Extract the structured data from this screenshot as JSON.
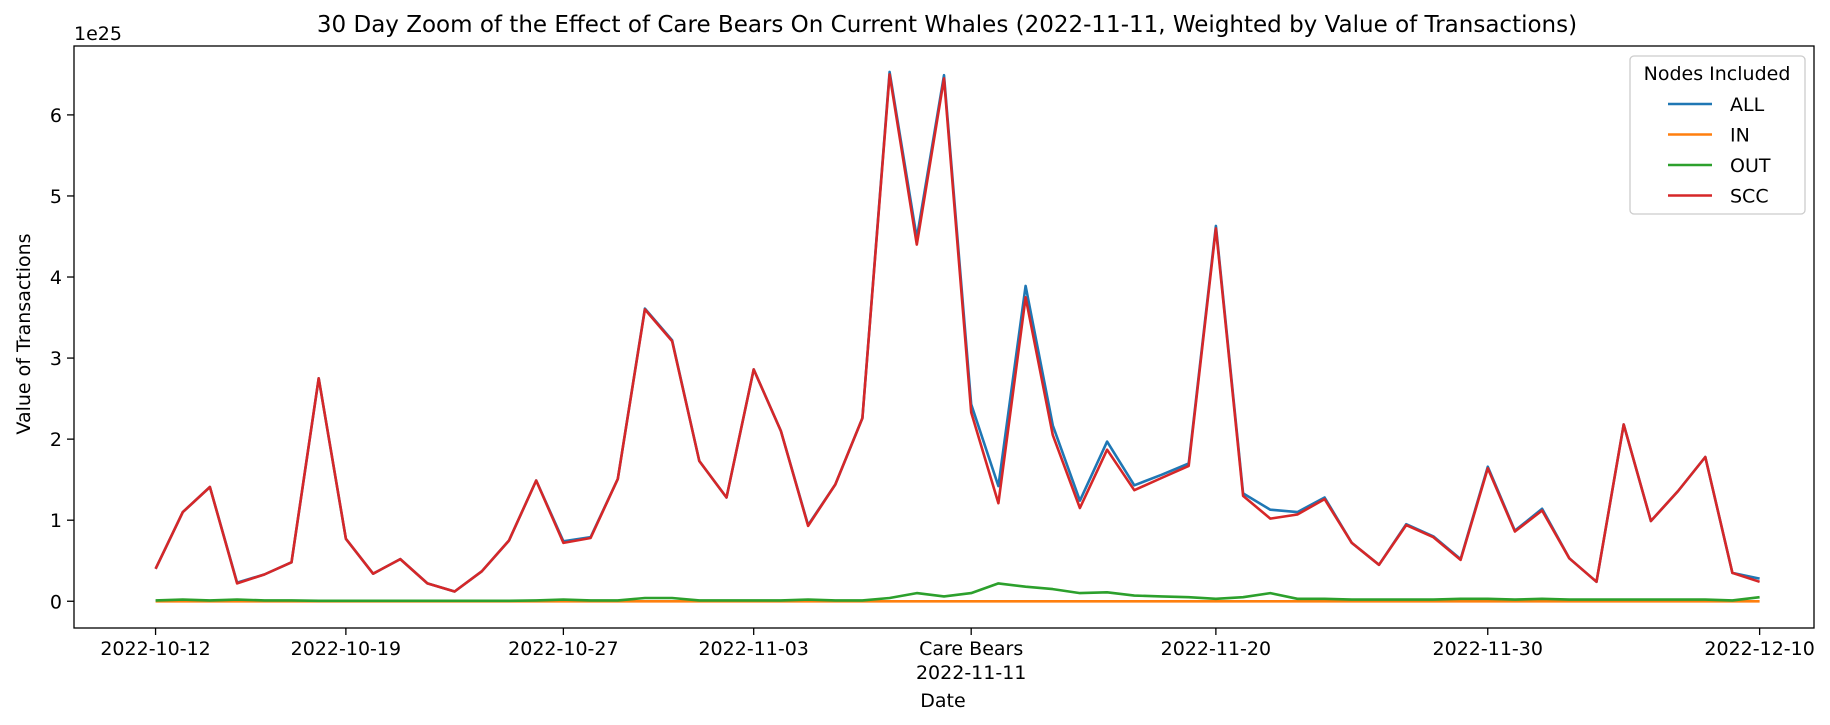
{
  "chart_data": {
    "type": "line",
    "title": "30 Day Zoom of the Effect of Care Bears On Current Whales (2022-11-11, Weighted by Value of Transactions)",
    "xlabel": "Date",
    "ylabel": "Value of Transactions",
    "y_multiplier": "1e25",
    "ylim": [
      -0.33,
      6.85
    ],
    "xlim": [
      "2022-10-09",
      "2022-12-12"
    ],
    "y_ticks": [
      0,
      1,
      2,
      3,
      4,
      5,
      6
    ],
    "x_ticks": [
      {
        "date": "2022-10-12",
        "label": "2022-10-12"
      },
      {
        "date": "2022-10-19",
        "label": "2022-10-19"
      },
      {
        "date": "2022-10-27",
        "label": "2022-10-27"
      },
      {
        "date": "2022-11-03",
        "label": "2022-11-03"
      },
      {
        "date": "2022-11-11",
        "label": "Care Bears\n2022-11-11"
      },
      {
        "date": "2022-11-20",
        "label": "2022-11-20"
      },
      {
        "date": "2022-11-30",
        "label": "2022-11-30"
      },
      {
        "date": "2022-12-10",
        "label": "2022-12-10"
      }
    ],
    "legend_title": "Nodes Included",
    "legend_position": "top-right",
    "grid": false,
    "x": [
      "2022-10-12",
      "2022-10-13",
      "2022-10-14",
      "2022-10-15",
      "2022-10-16",
      "2022-10-17",
      "2022-10-18",
      "2022-10-19",
      "2022-10-20",
      "2022-10-21",
      "2022-10-22",
      "2022-10-23",
      "2022-10-24",
      "2022-10-25",
      "2022-10-26",
      "2022-10-27",
      "2022-10-28",
      "2022-10-29",
      "2022-10-30",
      "2022-10-31",
      "2022-11-01",
      "2022-11-02",
      "2022-11-03",
      "2022-11-04",
      "2022-11-05",
      "2022-11-06",
      "2022-11-07",
      "2022-11-08",
      "2022-11-09",
      "2022-11-10",
      "2022-11-11",
      "2022-11-12",
      "2022-11-13",
      "2022-11-14",
      "2022-11-15",
      "2022-11-16",
      "2022-11-17",
      "2022-11-18",
      "2022-11-19",
      "2022-11-20",
      "2022-11-21",
      "2022-11-22",
      "2022-11-23",
      "2022-11-24",
      "2022-11-25",
      "2022-11-26",
      "2022-11-27",
      "2022-11-28",
      "2022-11-29",
      "2022-11-30",
      "2022-12-01",
      "2022-12-02",
      "2022-12-03",
      "2022-12-04",
      "2022-12-05",
      "2022-12-06",
      "2022-12-07",
      "2022-12-08",
      "2022-12-09",
      "2022-12-10"
    ],
    "series": [
      {
        "name": "ALL",
        "color": "#1f77b4",
        "values": [
          0.4,
          1.1,
          1.41,
          0.23,
          0.33,
          0.48,
          2.75,
          0.77,
          0.34,
          0.52,
          0.22,
          0.12,
          0.37,
          0.75,
          1.49,
          0.74,
          0.79,
          1.51,
          3.61,
          3.22,
          1.73,
          1.28,
          2.86,
          2.1,
          0.94,
          1.44,
          2.26,
          6.53,
          4.48,
          6.49,
          2.43,
          1.42,
          3.89,
          2.17,
          1.24,
          1.97,
          1.43,
          1.56,
          1.7,
          4.63,
          1.33,
          1.13,
          1.1,
          1.28,
          0.72,
          0.45,
          0.95,
          0.8,
          0.52,
          1.66,
          0.87,
          1.14,
          0.53,
          0.24,
          2.18,
          0.99,
          1.36,
          1.78,
          0.35,
          0.28
        ]
      },
      {
        "name": "IN",
        "color": "#ff7f0e",
        "values": [
          0,
          0,
          0,
          0,
          0,
          0,
          0,
          0,
          0,
          0,
          0,
          0,
          0,
          0,
          0,
          0,
          0,
          0,
          0,
          0,
          0,
          0,
          0,
          0,
          0,
          0,
          0,
          0,
          0,
          0,
          0,
          0,
          0,
          0,
          0,
          0,
          0,
          0,
          0,
          0,
          0,
          0,
          0,
          0,
          0,
          0,
          0,
          0,
          0,
          0,
          0,
          0,
          0,
          0,
          0,
          0,
          0,
          0,
          0,
          0
        ]
      },
      {
        "name": "OUT",
        "color": "#2ca02c",
        "values": [
          0.01,
          0.02,
          0.01,
          0.02,
          0.01,
          0.01,
          0.005,
          0.005,
          0.005,
          0.005,
          0.005,
          0.005,
          0.005,
          0.005,
          0.01,
          0.02,
          0.01,
          0.01,
          0.04,
          0.04,
          0.01,
          0.01,
          0.01,
          0.01,
          0.02,
          0.01,
          0.01,
          0.04,
          0.1,
          0.06,
          0.1,
          0.22,
          0.18,
          0.15,
          0.1,
          0.11,
          0.07,
          0.06,
          0.05,
          0.03,
          0.05,
          0.1,
          0.03,
          0.03,
          0.02,
          0.02,
          0.02,
          0.02,
          0.03,
          0.03,
          0.02,
          0.03,
          0.02,
          0.02,
          0.02,
          0.02,
          0.02,
          0.02,
          0.01,
          0.05
        ]
      },
      {
        "name": "SCC",
        "color": "#d62728",
        "values": [
          0.4,
          1.1,
          1.41,
          0.22,
          0.33,
          0.48,
          2.75,
          0.77,
          0.34,
          0.52,
          0.22,
          0.12,
          0.37,
          0.75,
          1.49,
          0.72,
          0.78,
          1.51,
          3.6,
          3.21,
          1.73,
          1.28,
          2.86,
          2.1,
          0.93,
          1.44,
          2.26,
          6.5,
          4.4,
          6.45,
          2.33,
          1.21,
          3.75,
          2.05,
          1.15,
          1.87,
          1.37,
          1.52,
          1.67,
          4.6,
          1.3,
          1.02,
          1.07,
          1.26,
          0.72,
          0.45,
          0.94,
          0.79,
          0.51,
          1.64,
          0.86,
          1.12,
          0.53,
          0.24,
          2.18,
          0.99,
          1.36,
          1.78,
          0.35,
          0.24
        ]
      }
    ]
  }
}
